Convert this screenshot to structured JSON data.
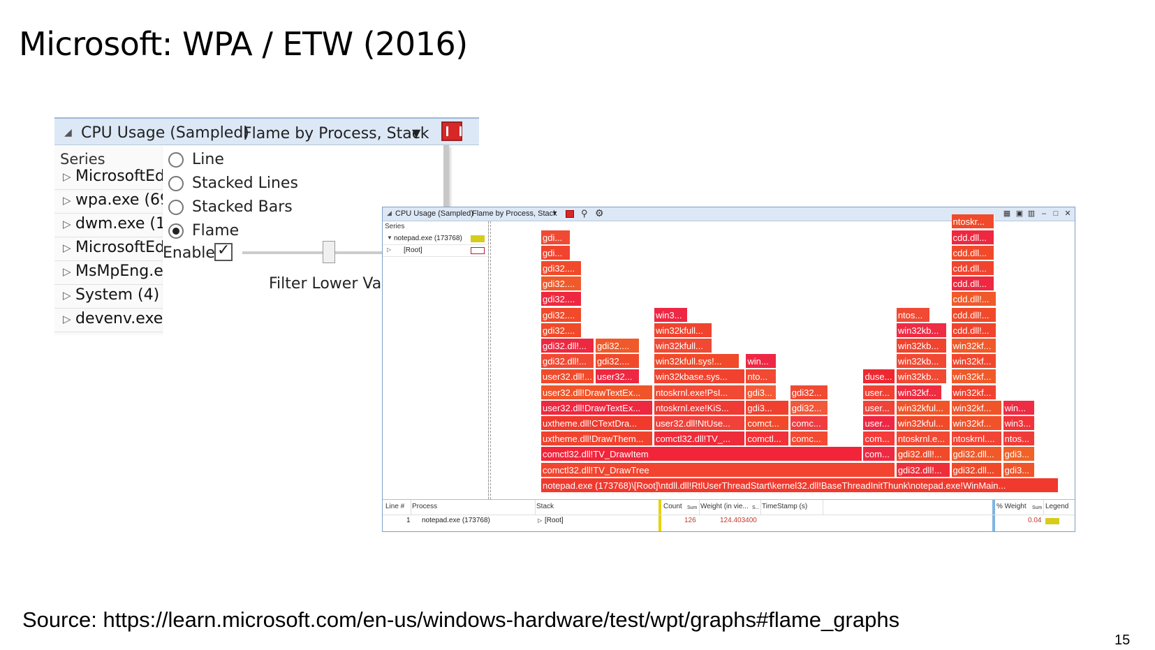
{
  "slide": {
    "title": "Microsoft: WPA / ETW (2016)",
    "source": "Source: https://learn.microsoft.com/en-us/windows-hardware/test/wpt/graphs#flame_graphs",
    "page_number": "15"
  },
  "zoomed_panel": {
    "graph_title": "CPU Usage (Sampled)",
    "preset": "Flame by Process, Stack",
    "series_header": "Series",
    "series": [
      "MicrosoftEd(",
      "wpa.exe (694",
      "dwm.exe (12",
      "MicrosoftEd(",
      "MsMpEng.ex",
      "System (4)",
      "devenv.exe (6148)"
    ],
    "menu": {
      "options": [
        "Line",
        "Stacked Lines",
        "Stacked Bars",
        "Flame"
      ],
      "selected": "Flame",
      "enable_label": "Enable",
      "enable_checked": true,
      "filter_label": "Filter Lower Value"
    }
  },
  "window": {
    "graph_title": "CPU Usage (Sampled)",
    "preset": "Flame by Process, Stack",
    "series_header": "Series",
    "series": [
      {
        "name": "notepad.exe (173768)",
        "expanded": true,
        "color": "#d6cc1a"
      },
      {
        "name": "[Root]",
        "expanded": false,
        "color": "#ffffff"
      }
    ],
    "window_buttons": [
      "▦",
      "▣",
      "▥",
      "–",
      "□",
      "✕"
    ],
    "flame": [
      {
        "label": "notepad.exe  (173768)\\[Root]\\ntdll.dll!RtlUserThreadStart\\kernel32.dll!BaseThreadInitThunk\\notepad.exe!WinMain...",
        "row": 0,
        "start": 0,
        "width": 0.97,
        "color": "#f03a2e"
      },
      {
        "label": "comctl32.dll!TV_DrawTree",
        "row": 1,
        "start": 0,
        "width": 0.663,
        "color": "#f2442e"
      },
      {
        "label": "gdi32.dll!...",
        "row": 1,
        "start": 0.666,
        "width": 0.101,
        "color": "#ee2f3a"
      },
      {
        "label": "gdi32.dll...",
        "row": 1,
        "start": 0.769,
        "width": 0.095,
        "color": "#f0492a"
      },
      {
        "label": "gdi3...",
        "row": 1,
        "start": 0.866,
        "width": 0.06,
        "color": "#f0552a"
      },
      {
        "label": "comctl32.dll!TV_DrawItem",
        "row": 2,
        "start": 0,
        "width": 0.602,
        "color": "#f2243a"
      },
      {
        "label": "com...",
        "row": 2,
        "start": 0.604,
        "width": 0.06,
        "color": "#ee2a42"
      },
      {
        "label": "gdi32.dll!...",
        "row": 2,
        "start": 0.666,
        "width": 0.101,
        "color": "#f04a2a"
      },
      {
        "label": "gdi32.dll...",
        "row": 2,
        "start": 0.769,
        "width": 0.095,
        "color": "#f05a2a"
      },
      {
        "label": "gdi3...",
        "row": 2,
        "start": 0.866,
        "width": 0.06,
        "color": "#f06228"
      },
      {
        "label": "uxtheme.dll!DrawThem...",
        "row": 3,
        "start": 0,
        "width": 0.21,
        "color": "#f0432e"
      },
      {
        "label": "comctl32.dll!TV_...",
        "row": 3,
        "start": 0.212,
        "width": 0.17,
        "color": "#ee2c3a"
      },
      {
        "label": "comctl...",
        "row": 3,
        "start": 0.384,
        "width": 0.081,
        "color": "#f13238"
      },
      {
        "label": "comc...",
        "row": 3,
        "start": 0.467,
        "width": 0.071,
        "color": "#f34a33"
      },
      {
        "label": "com...",
        "row": 3,
        "start": 0.604,
        "width": 0.06,
        "color": "#f43c3a"
      },
      {
        "label": "ntoskrnl.e...",
        "row": 3,
        "start": 0.666,
        "width": 0.101,
        "color": "#f04a34"
      },
      {
        "label": "ntoskrnl....",
        "row": 3,
        "start": 0.769,
        "width": 0.095,
        "color": "#f14434"
      },
      {
        "label": "ntos...",
        "row": 3,
        "start": 0.866,
        "width": 0.06,
        "color": "#ef3c3a"
      },
      {
        "label": "uxtheme.dll!CTextDra...",
        "row": 4,
        "start": 0,
        "width": 0.21,
        "color": "#ef3a2c"
      },
      {
        "label": "user32.dll!NtUse...",
        "row": 4,
        "start": 0.212,
        "width": 0.17,
        "color": "#f0423a"
      },
      {
        "label": "comct...",
        "row": 4,
        "start": 0.384,
        "width": 0.081,
        "color": "#f04a2a"
      },
      {
        "label": "comc...",
        "row": 4,
        "start": 0.467,
        "width": 0.071,
        "color": "#ef3c40"
      },
      {
        "label": "user...",
        "row": 4,
        "start": 0.604,
        "width": 0.06,
        "color": "#ee2844"
      },
      {
        "label": "win32kful...",
        "row": 4,
        "start": 0.666,
        "width": 0.101,
        "color": "#f04a2a"
      },
      {
        "label": "win32kf...",
        "row": 4,
        "start": 0.769,
        "width": 0.095,
        "color": "#f0522a"
      },
      {
        "label": "win3...",
        "row": 4,
        "start": 0.866,
        "width": 0.06,
        "color": "#f1333a"
      },
      {
        "label": "user32.dll!DrawTextEx...",
        "row": 5,
        "start": 0,
        "width": 0.21,
        "color": "#ee2840"
      },
      {
        "label": "ntoskrnl.exe!KiS...",
        "row": 5,
        "start": 0.212,
        "width": 0.17,
        "color": "#f03a34"
      },
      {
        "label": "gdi3...",
        "row": 5,
        "start": 0.384,
        "width": 0.081,
        "color": "#f0412e"
      },
      {
        "label": "gdi32...",
        "row": 5,
        "start": 0.467,
        "width": 0.071,
        "color": "#f2583a"
      },
      {
        "label": "user...",
        "row": 5,
        "start": 0.604,
        "width": 0.06,
        "color": "#f0433a"
      },
      {
        "label": "win32kful...",
        "row": 5,
        "start": 0.666,
        "width": 0.101,
        "color": "#f0552a"
      },
      {
        "label": "win32kf...",
        "row": 5,
        "start": 0.769,
        "width": 0.095,
        "color": "#f0552a"
      },
      {
        "label": "win...",
        "row": 5,
        "start": 0.866,
        "width": 0.06,
        "color": "#ee2c44"
      },
      {
        "label": "user32.dll!DrawTextEx...",
        "row": 6,
        "start": 0,
        "width": 0.21,
        "color": "#f0552a"
      },
      {
        "label": "ntoskrnl.exe!PsI...",
        "row": 6,
        "start": 0.212,
        "width": 0.17,
        "color": "#f04a34"
      },
      {
        "label": "gdi3...",
        "row": 6,
        "start": 0.384,
        "width": 0.057,
        "color": "#f25a38"
      },
      {
        "label": "gdi32...",
        "row": 6,
        "start": 0.467,
        "width": 0.071,
        "color": "#f04a34"
      },
      {
        "label": "user...",
        "row": 6,
        "start": 0.604,
        "width": 0.06,
        "color": "#f04234"
      },
      {
        "label": "win32kf...",
        "row": 6,
        "start": 0.666,
        "width": 0.085,
        "color": "#ee2c40"
      },
      {
        "label": "win32kf...",
        "row": 6,
        "start": 0.769,
        "width": 0.085,
        "color": "#f0422e"
      },
      {
        "label": "user32.dll!...",
        "row": 7,
        "start": 0,
        "width": 0.1,
        "color": "#f04a2a"
      },
      {
        "label": "user32...",
        "row": 7,
        "start": 0.102,
        "width": 0.082,
        "color": "#ee2840"
      },
      {
        "label": "win32kbase.sys...",
        "row": 7,
        "start": 0.212,
        "width": 0.17,
        "color": "#f0422e"
      },
      {
        "label": "nto...",
        "row": 7,
        "start": 0.384,
        "width": 0.057,
        "color": "#f04a34"
      },
      {
        "label": "duse...",
        "row": 7,
        "start": 0.604,
        "width": 0.06,
        "color": "#ee2830"
      },
      {
        "label": "win32kb...",
        "row": 7,
        "start": 0.666,
        "width": 0.094,
        "color": "#f04a34"
      },
      {
        "label": "win32kf...",
        "row": 7,
        "start": 0.769,
        "width": 0.085,
        "color": "#f05a2a"
      },
      {
        "label": "gdi32.dll!...",
        "row": 8,
        "start": 0,
        "width": 0.1,
        "color": "#f04a34"
      },
      {
        "label": "gdi32....",
        "row": 8,
        "start": 0.102,
        "width": 0.082,
        "color": "#f04a2a"
      },
      {
        "label": "win32kfull.sys!...",
        "row": 8,
        "start": 0.212,
        "width": 0.16,
        "color": "#f04a2a"
      },
      {
        "label": "win...",
        "row": 8,
        "start": 0.384,
        "width": 0.057,
        "color": "#ee2844"
      },
      {
        "label": "win32kb...",
        "row": 8,
        "start": 0.666,
        "width": 0.094,
        "color": "#f04a34"
      },
      {
        "label": "win32kf...",
        "row": 8,
        "start": 0.769,
        "width": 0.085,
        "color": "#f0482e"
      },
      {
        "label": "gdi32.dll!...",
        "row": 9,
        "start": 0,
        "width": 0.1,
        "color": "#ee2840"
      },
      {
        "label": "gdi32....",
        "row": 9,
        "start": 0.102,
        "width": 0.082,
        "color": "#f05a2a"
      },
      {
        "label": "win32kfull...",
        "row": 9,
        "start": 0.212,
        "width": 0.109,
        "color": "#f04a34"
      },
      {
        "label": "win32kb...",
        "row": 9,
        "start": 0.666,
        "width": 0.094,
        "color": "#f0442e"
      },
      {
        "label": "win32kf...",
        "row": 9,
        "start": 0.769,
        "width": 0.085,
        "color": "#f05a2a"
      },
      {
        "label": "gdi32....",
        "row": 10,
        "start": 0,
        "width": 0.076,
        "color": "#f04a2a"
      },
      {
        "label": "win32kfull...",
        "row": 10,
        "start": 0.212,
        "width": 0.109,
        "color": "#f0442e"
      },
      {
        "label": "win32kb...",
        "row": 10,
        "start": 0.666,
        "width": 0.094,
        "color": "#ee2c44"
      },
      {
        "label": "cdd.dll!...",
        "row": 10,
        "start": 0.769,
        "width": 0.085,
        "color": "#f0442e"
      },
      {
        "label": "gdi32....",
        "row": 11,
        "start": 0,
        "width": 0.076,
        "color": "#f04a2a"
      },
      {
        "label": "win3...",
        "row": 11,
        "start": 0.212,
        "width": 0.063,
        "color": "#ee2844"
      },
      {
        "label": "ntos...",
        "row": 11,
        "start": 0.666,
        "width": 0.063,
        "color": "#f04a34"
      },
      {
        "label": "cdd.dll!...",
        "row": 11,
        "start": 0.769,
        "width": 0.085,
        "color": "#f04a2a"
      },
      {
        "label": "gdi32....",
        "row": 12,
        "start": 0,
        "width": 0.076,
        "color": "#ee2840"
      },
      {
        "label": "cdd.dll!...",
        "row": 12,
        "start": 0.769,
        "width": 0.085,
        "color": "#f05a2a"
      },
      {
        "label": "gdi32....",
        "row": 13,
        "start": 0,
        "width": 0.076,
        "color": "#f05a2a"
      },
      {
        "label": "cdd.dll...",
        "row": 13,
        "start": 0.769,
        "width": 0.08,
        "color": "#ee2840"
      },
      {
        "label": "gdi32....",
        "row": 14,
        "start": 0,
        "width": 0.076,
        "color": "#f04a2a"
      },
      {
        "label": "cdd.dll...",
        "row": 14,
        "start": 0.769,
        "width": 0.08,
        "color": "#f0442e"
      },
      {
        "label": "gdi...",
        "row": 15,
        "start": 0,
        "width": 0.055,
        "color": "#f0442e"
      },
      {
        "label": "cdd.dll...",
        "row": 15,
        "start": 0.769,
        "width": 0.08,
        "color": "#f04a2a"
      },
      {
        "label": "gdi...",
        "row": 16,
        "start": 0,
        "width": 0.055,
        "color": "#f04a34"
      },
      {
        "label": "cdd.dll...",
        "row": 16,
        "start": 0.769,
        "width": 0.08,
        "color": "#ee2840"
      },
      {
        "label": "ntoskr...",
        "row": 17,
        "start": 0.769,
        "width": 0.08,
        "color": "#f04a2a"
      }
    ],
    "table": {
      "columns": [
        "Line #",
        "Process",
        "Stack",
        "Count",
        "Weight (in vie...",
        "TimeStamp (s)",
        "% Weight",
        "Legend"
      ],
      "count_sum_tag": "Sum",
      "weight_sum_tag": "S...",
      "pct_sum_tag": "Sum",
      "row": {
        "line": "1",
        "process": "notepad.exe (173768)",
        "stack": "[Root]",
        "count": "126",
        "weight": "124.403400",
        "pct_weight": "0.04",
        "legend_color": "#d6cc1a"
      }
    }
  }
}
